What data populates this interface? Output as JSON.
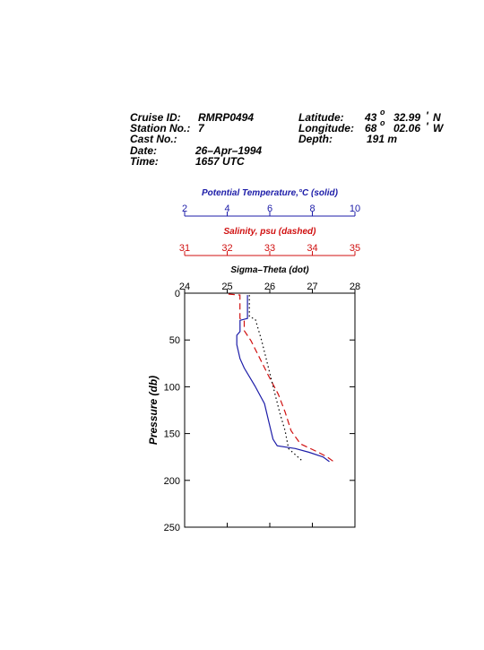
{
  "header": {
    "cruise_id": {
      "label": "Cruise ID:",
      "value": "RMRP0494"
    },
    "station": {
      "label": "Station No.:",
      "value": "7"
    },
    "cast": {
      "label": "Cast No.:"
    },
    "date": {
      "label": "Date:",
      "value": "26–Apr–1994"
    },
    "time": {
      "label": "Time:",
      "value": "1657 UTC"
    },
    "latitude": {
      "label": "Latitude:",
      "deg": "43",
      "min": "32.99",
      "hemisphere": "N"
    },
    "longitude": {
      "label": "Longitude:",
      "deg": "68",
      "min": "02.06",
      "hemisphere": "W"
    },
    "depth": {
      "label": "Depth:",
      "value": "191 m"
    },
    "deg_symbol": "o",
    "min_symbol": "'"
  },
  "chart_data": {
    "type": "line",
    "y_label": "Pressure (db)",
    "ylim": [
      0,
      250
    ],
    "yticks": [
      0,
      50,
      100,
      150,
      200,
      250
    ],
    "y_inverted": true,
    "x_axes": [
      {
        "label": "Potential Temperature,°C (solid)",
        "color": "#1c1ca8",
        "xlim": [
          2,
          10
        ],
        "xticks": [
          2,
          4,
          6,
          8,
          10
        ]
      },
      {
        "label": "Salinity, psu  (dashed)",
        "color": "#d01010",
        "xlim": [
          31,
          35
        ],
        "xticks": [
          31,
          32,
          33,
          34,
          35
        ]
      },
      {
        "label": "Sigma–Theta (dot)",
        "color": "#000000",
        "xlim": [
          24,
          28
        ],
        "xticks": [
          24,
          25,
          26,
          27,
          28
        ]
      }
    ],
    "series": [
      {
        "x_axis": 0,
        "color": "#1c1ca8",
        "dash": "solid",
        "values": [
          4.95,
          4.95,
          4.6,
          4.6,
          4.45,
          4.45,
          4.6,
          4.8,
          5.3,
          5.75,
          5.95,
          6.15,
          6.35,
          7.2,
          7.85,
          8.5,
          8.8
        ],
        "pressure": [
          2,
          27,
          29,
          41,
          45,
          55,
          70,
          80,
          99,
          118,
          137,
          156,
          163,
          166,
          170,
          175,
          180
        ]
      },
      {
        "x_axis": 1,
        "color": "#d01010",
        "dash": "dashed",
        "values": [
          32.03,
          32.3,
          32.3,
          32.4,
          32.4,
          32.56,
          32.77,
          32.98,
          33.2,
          33.36,
          33.5,
          33.72,
          34.14,
          34.35,
          34.5
        ],
        "pressure": [
          1,
          2,
          27,
          30,
          40,
          51,
          70,
          89,
          108,
          127,
          147,
          161,
          170,
          175,
          180
        ]
      },
      {
        "x_axis": 2,
        "color": "#000000",
        "dash": "dotted",
        "values": [
          25.52,
          25.52,
          25.66,
          25.81,
          26.02,
          26.23,
          26.36,
          26.44,
          26.78
        ],
        "pressure": [
          2,
          25,
          28,
          51,
          89,
          127,
          147,
          166,
          180
        ]
      }
    ]
  }
}
